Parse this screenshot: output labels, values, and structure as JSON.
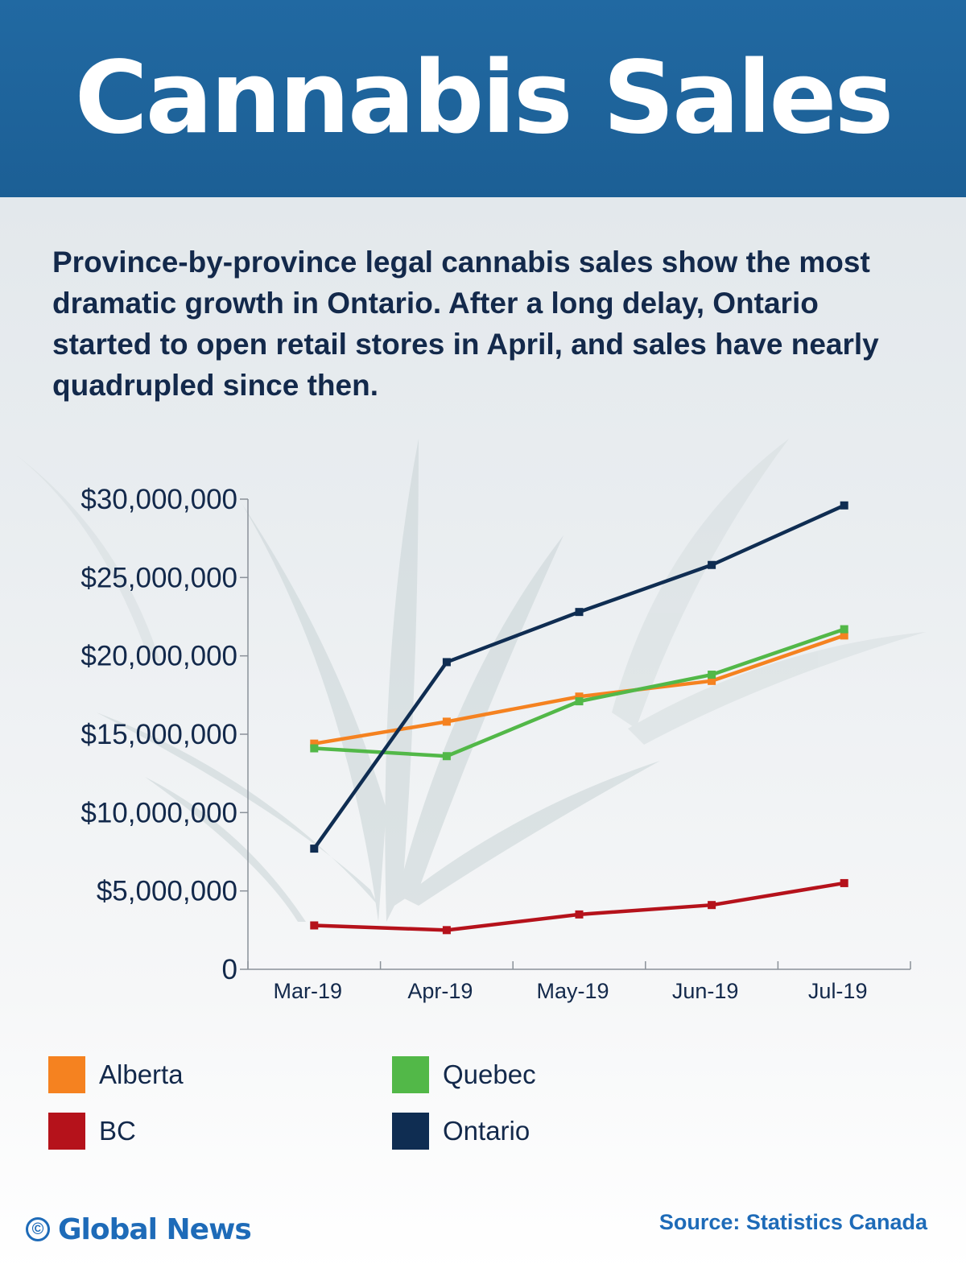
{
  "header": {
    "title": "Cannabis Sales"
  },
  "description": "Province-by-province legal cannabis sales show the most dramatic growth in Ontario. After a long delay, Ontario started to open retail stores in April, and sales have nearly quadrupled since then.",
  "chart_data": {
    "type": "line",
    "title": "",
    "xlabel": "",
    "ylabel": "",
    "categories": [
      "Mar-19",
      "Apr-19",
      "May-19",
      "Jun-19",
      "Jul-19"
    ],
    "ylim": [
      0,
      30000000
    ],
    "y_ticks": [
      0,
      5000000,
      10000000,
      15000000,
      20000000,
      25000000,
      30000000
    ],
    "y_tick_labels": [
      "0",
      "$5,000,000",
      "$10,000,000",
      "$15,000,000",
      "$20,000,000",
      "$25,000,000",
      "$30,000,000"
    ],
    "grid": false,
    "legend_placement": "bottom",
    "series": [
      {
        "name": "Alberta",
        "color": "#f58220",
        "values": [
          14400000,
          15800000,
          17400000,
          18400000,
          21300000
        ]
      },
      {
        "name": "Quebec",
        "color": "#52b848",
        "values": [
          14100000,
          13600000,
          17100000,
          18800000,
          21700000
        ]
      },
      {
        "name": "BC",
        "color": "#b5121b",
        "values": [
          2800000,
          2500000,
          3500000,
          4100000,
          5500000
        ]
      },
      {
        "name": "Ontario",
        "color": "#0f2d52",
        "values": [
          7700000,
          19600000,
          22800000,
          25800000,
          29600000
        ]
      }
    ]
  },
  "footer": {
    "copyright_symbol": "©",
    "brand": "Global News",
    "source": "Source: Statistics Canada"
  },
  "colors": {
    "header_bg": "#1f64a0",
    "text_dark": "#13294b",
    "brand_blue": "#1e6bb8"
  }
}
